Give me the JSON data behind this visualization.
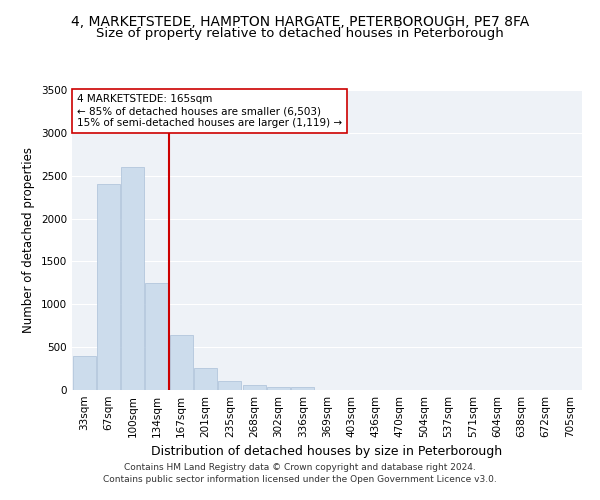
{
  "title1": "4, MARKETSTEDE, HAMPTON HARGATE, PETERBOROUGH, PE7 8FA",
  "title2": "Size of property relative to detached houses in Peterborough",
  "xlabel": "Distribution of detached houses by size in Peterborough",
  "ylabel": "Number of detached properties",
  "categories": [
    "33sqm",
    "67sqm",
    "100sqm",
    "134sqm",
    "167sqm",
    "201sqm",
    "235sqm",
    "268sqm",
    "302sqm",
    "336sqm",
    "369sqm",
    "403sqm",
    "436sqm",
    "470sqm",
    "504sqm",
    "537sqm",
    "571sqm",
    "604sqm",
    "638sqm",
    "672sqm",
    "705sqm"
  ],
  "values": [
    400,
    2400,
    2600,
    1250,
    640,
    260,
    110,
    55,
    40,
    30,
    0,
    0,
    0,
    0,
    0,
    0,
    0,
    0,
    0,
    0,
    0
  ],
  "bar_color": "#ccdcec",
  "bar_edge_color": "#aac0d8",
  "vline_index": 4,
  "vline_color": "#cc0000",
  "annotation_line1": "4 MARKETSTEDE: 165sqm",
  "annotation_line2": "← 85% of detached houses are smaller (6,503)",
  "annotation_line3": "15% of semi-detached houses are larger (1,119) →",
  "annotation_box_color": "#ffffff",
  "annotation_box_edge": "#cc0000",
  "ylim": [
    0,
    3500
  ],
  "yticks": [
    0,
    500,
    1000,
    1500,
    2000,
    2500,
    3000,
    3500
  ],
  "footer1": "Contains HM Land Registry data © Crown copyright and database right 2024.",
  "footer2": "Contains public sector information licensed under the Open Government Licence v3.0.",
  "plot_bg_color": "#eef2f7",
  "grid_color": "#ffffff",
  "title1_fontsize": 10,
  "title2_fontsize": 9.5,
  "xlabel_fontsize": 9,
  "ylabel_fontsize": 8.5,
  "tick_fontsize": 7.5,
  "footer_fontsize": 6.5
}
